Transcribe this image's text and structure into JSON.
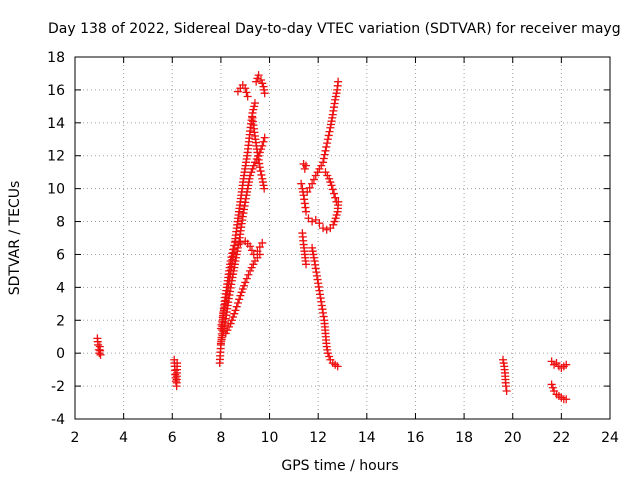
{
  "chart_data": {
    "type": "scatter",
    "title": "Day 138 of 2022, Sidereal Day-to-day VTEC variation (SDTVAR) for receiver mayg",
    "xlabel": "GPS time / hours",
    "ylabel": "SDTVAR / TECUs",
    "xlim": [
      2,
      24
    ],
    "ylim": [
      -4,
      18
    ],
    "x_ticks": [
      "2",
      "4",
      "6",
      "8",
      "10",
      "12",
      "14",
      "16",
      "18",
      "20",
      "22",
      "24"
    ],
    "y_ticks": [
      "-4",
      "-2",
      "0",
      "2",
      "4",
      "6",
      "8",
      "10",
      "12",
      "14",
      "16",
      "18"
    ],
    "grid": true,
    "marker": "plus",
    "marker_color": "#ee1111",
    "series": [
      {
        "name": "SDTVAR",
        "segments": [
          [
            [
              2.92,
              0.9
            ],
            [
              2.95,
              0.5
            ],
            [
              2.98,
              0.2
            ],
            [
              3.0,
              0.0
            ],
            [
              3.02,
              0.4
            ],
            [
              3.05,
              -0.1
            ]
          ],
          [
            [
              6.08,
              -0.4
            ],
            [
              6.1,
              -0.8
            ],
            [
              6.12,
              -1.3
            ],
            [
              6.15,
              -1.7
            ],
            [
              6.18,
              -2.0
            ],
            [
              6.2,
              -0.6
            ]
          ],
          [
            [
              7.95,
              -0.6
            ],
            [
              8.0,
              0.5
            ],
            [
              8.05,
              1.4
            ],
            [
              8.1,
              2.5
            ],
            [
              8.2,
              3.6
            ],
            [
              8.3,
              4.6
            ],
            [
              8.4,
              5.6
            ],
            [
              8.5,
              6.3
            ],
            [
              8.6,
              6.8
            ],
            [
              8.8,
              6.7
            ],
            [
              9.0,
              6.8
            ],
            [
              9.2,
              6.5
            ],
            [
              9.35,
              6.0
            ],
            [
              9.5,
              6.2
            ],
            [
              9.7,
              6.7
            ]
          ],
          [
            [
              8.0,
              1.5
            ],
            [
              8.1,
              2.4
            ],
            [
              8.2,
              3.2
            ],
            [
              8.35,
              4.4
            ],
            [
              8.5,
              5.9
            ],
            [
              8.65,
              7.6
            ],
            [
              8.8,
              9.2
            ],
            [
              8.95,
              10.8
            ],
            [
              9.1,
              12.2
            ],
            [
              9.2,
              13.5
            ],
            [
              9.3,
              14.6
            ],
            [
              9.4,
              15.2
            ]
          ],
          [
            [
              8.7,
              15.9
            ],
            [
              8.8,
              16.1
            ],
            [
              8.9,
              16.3
            ],
            [
              9.0,
              16.1
            ],
            [
              9.1,
              15.6
            ]
          ],
          [
            [
              9.3,
              14.3
            ],
            [
              9.4,
              13.2
            ],
            [
              9.5,
              12.2
            ],
            [
              9.6,
              11.3
            ],
            [
              9.7,
              10.6
            ],
            [
              9.78,
              10.0
            ]
          ],
          [
            [
              8.0,
              0.6
            ],
            [
              8.1,
              1.3
            ],
            [
              8.2,
              2.1
            ],
            [
              8.3,
              3.1
            ],
            [
              8.45,
              4.4
            ],
            [
              8.6,
              5.6
            ],
            [
              8.75,
              6.8
            ],
            [
              8.9,
              8.3
            ],
            [
              9.05,
              9.6
            ],
            [
              9.2,
              10.8
            ],
            [
              9.4,
              11.6
            ],
            [
              9.55,
              12.0
            ],
            [
              9.7,
              12.6
            ],
            [
              9.8,
              13.1
            ]
          ],
          [
            [
              8.2,
              1.2
            ],
            [
              8.4,
              1.8
            ],
            [
              8.6,
              2.6
            ],
            [
              8.8,
              3.5
            ],
            [
              9.0,
              4.3
            ],
            [
              9.2,
              5.0
            ],
            [
              9.4,
              5.6
            ],
            [
              9.6,
              6.0
            ]
          ],
          [
            [
              9.45,
              16.5
            ],
            [
              9.55,
              16.9
            ],
            [
              9.65,
              16.6
            ],
            [
              9.75,
              16.2
            ],
            [
              9.8,
              15.8
            ]
          ],
          [
            [
              11.4,
              11.5
            ],
            [
              11.45,
              11.2
            ],
            [
              11.5,
              11.4
            ]
          ],
          [
            [
              11.3,
              10.3
            ],
            [
              11.35,
              10.0
            ],
            [
              11.4,
              9.6
            ],
            [
              11.45,
              9.1
            ],
            [
              11.5,
              8.6
            ]
          ],
          [
            [
              11.35,
              7.3
            ],
            [
              11.4,
              6.6
            ],
            [
              11.45,
              6.0
            ],
            [
              11.5,
              5.4
            ]
          ],
          [
            [
              11.75,
              6.4
            ],
            [
              11.85,
              5.6
            ],
            [
              11.95,
              4.7
            ],
            [
              12.05,
              3.8
            ],
            [
              12.15,
              2.9
            ],
            [
              12.25,
              2.0
            ],
            [
              12.3,
              1.2
            ],
            [
              12.35,
              0.4
            ],
            [
              12.4,
              0.0
            ],
            [
              12.5,
              -0.4
            ],
            [
              12.6,
              -0.6
            ],
            [
              12.7,
              -0.7
            ],
            [
              12.8,
              -0.8
            ]
          ],
          [
            [
              11.6,
              8.2
            ],
            [
              11.75,
              8.0
            ],
            [
              11.9,
              8.1
            ],
            [
              12.05,
              7.9
            ],
            [
              12.2,
              7.6
            ],
            [
              12.35,
              7.5
            ],
            [
              12.5,
              7.6
            ],
            [
              12.62,
              7.8
            ],
            [
              12.72,
              8.2
            ],
            [
              12.8,
              8.6
            ],
            [
              12.83,
              9.2
            ]
          ],
          [
            [
              11.55,
              9.8
            ],
            [
              11.75,
              10.3
            ],
            [
              11.9,
              10.8
            ],
            [
              12.05,
              11.2
            ],
            [
              12.2,
              11.6
            ],
            [
              12.3,
              12.3
            ],
            [
              12.4,
              13.0
            ],
            [
              12.5,
              13.7
            ],
            [
              12.6,
              14.5
            ],
            [
              12.7,
              15.4
            ],
            [
              12.78,
              16.0
            ],
            [
              12.82,
              16.5
            ]
          ],
          [
            [
              12.3,
              11.0
            ],
            [
              12.45,
              10.6
            ],
            [
              12.55,
              10.2
            ],
            [
              12.65,
              9.7
            ],
            [
              12.75,
              9.2
            ]
          ],
          [
            [
              19.6,
              -0.4
            ],
            [
              19.65,
              -0.8
            ],
            [
              19.68,
              -1.2
            ],
            [
              19.7,
              -1.6
            ],
            [
              19.72,
              -2.0
            ],
            [
              19.75,
              -2.3
            ]
          ],
          [
            [
              21.6,
              -0.5
            ],
            [
              21.7,
              -0.7
            ],
            [
              21.8,
              -0.6
            ],
            [
              21.9,
              -0.8
            ],
            [
              22.0,
              -0.9
            ],
            [
              22.1,
              -0.8
            ],
            [
              22.2,
              -0.7
            ]
          ],
          [
            [
              21.6,
              -1.9
            ],
            [
              21.7,
              -2.3
            ],
            [
              21.8,
              -2.5
            ],
            [
              21.9,
              -2.6
            ],
            [
              22.0,
              -2.7
            ],
            [
              22.1,
              -2.8
            ],
            [
              22.2,
              -2.8
            ]
          ]
        ]
      }
    ]
  }
}
